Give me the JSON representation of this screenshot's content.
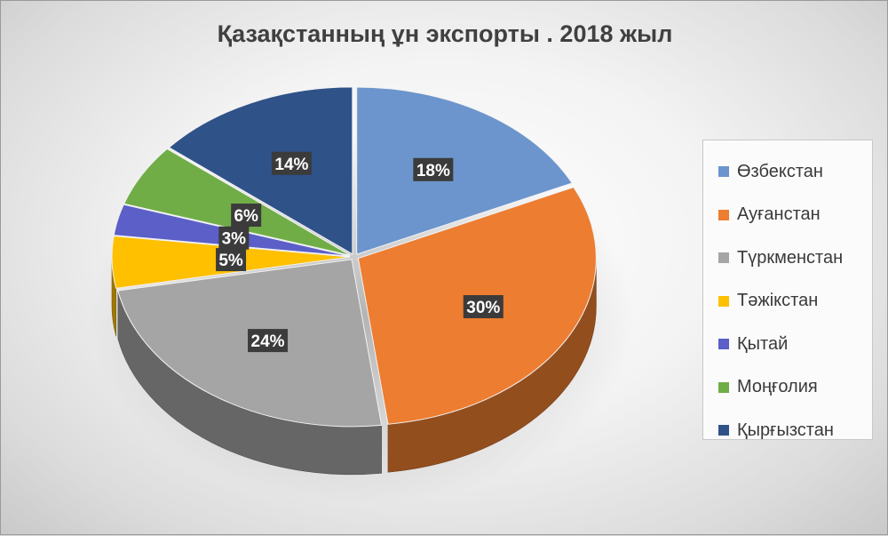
{
  "chart_data": {
    "type": "pie",
    "title": "Қазақстанның ұн экспорты . 2018 жыл",
    "style": "3d-exploded",
    "legend_position": "right",
    "slices": [
      {
        "name": "Өзбекстан",
        "value": 18,
        "label": "18%",
        "color": "#6b95cc"
      },
      {
        "name": "Ауғанстан",
        "value": 30,
        "label": "30%",
        "color": "#ed7d31"
      },
      {
        "name": "Түркменстан",
        "value": 24,
        "label": "24%",
        "color": "#a5a5a5"
      },
      {
        "name": "Тәжікстан",
        "value": 5,
        "label": "5%",
        "color": "#ffc000"
      },
      {
        "name": "Қытай",
        "value": 3,
        "label": "3%",
        "color": "#5b5fc7"
      },
      {
        "name": "Моңғолия",
        "value": 6,
        "label": "6%",
        "color": "#70ad47"
      },
      {
        "name": "Қырғызстан",
        "value": 14,
        "label": "14%",
        "color": "#2f5289"
      }
    ]
  }
}
